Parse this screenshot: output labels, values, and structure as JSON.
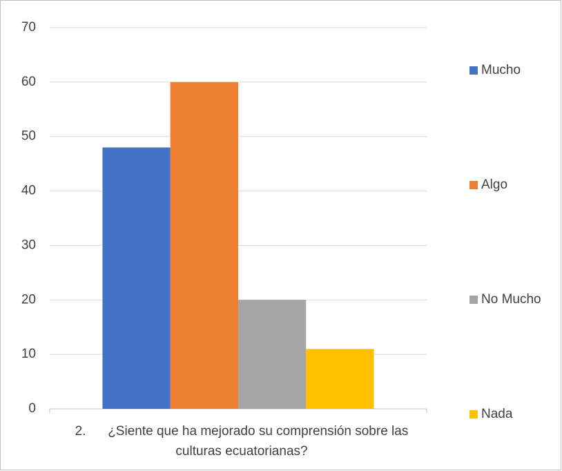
{
  "chart_data": {
    "type": "bar",
    "categories": [
      "2.      ¿Siente que ha mejorado su comprensión sobre las culturas ecuatorianas?"
    ],
    "series": [
      {
        "name": "Mucho",
        "color": "#4472c4",
        "values": [
          48
        ]
      },
      {
        "name": "Algo",
        "color": "#ed7d31",
        "values": [
          60
        ]
      },
      {
        "name": "No Mucho",
        "color": "#a5a5a5",
        "values": [
          20
        ]
      },
      {
        "name": "Nada",
        "color": "#ffc000",
        "values": [
          11
        ]
      }
    ],
    "ylim": [
      0,
      70
    ],
    "yticks": [
      0,
      10,
      20,
      30,
      40,
      50,
      60,
      70
    ],
    "grid": true,
    "legend": "right"
  }
}
